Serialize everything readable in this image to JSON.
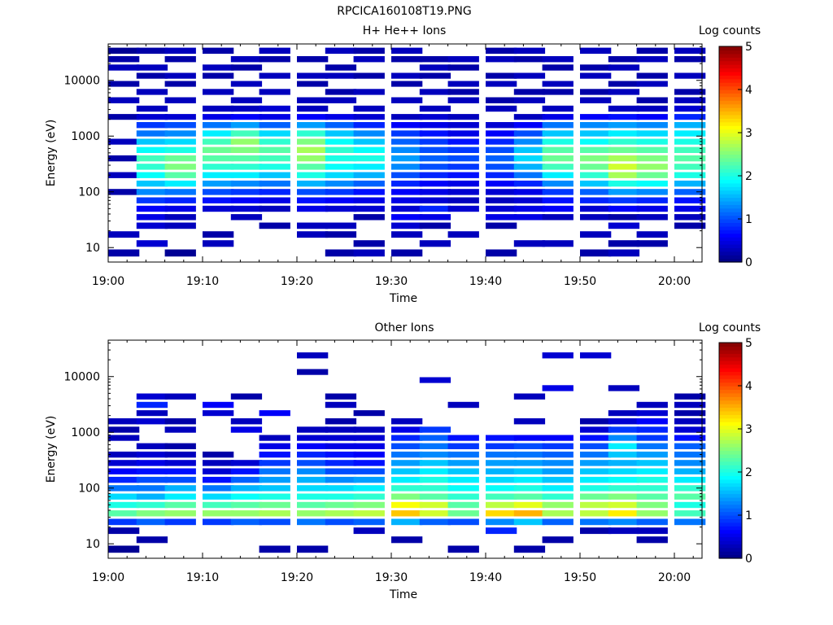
{
  "figure": {
    "title": "RPCICA160108T19.PNG"
  },
  "panels": [
    {
      "title": "H+ He++ Ions",
      "colorbar_label": "Log counts"
    },
    {
      "title": "Other Ions",
      "colorbar_label": "Log counts"
    }
  ],
  "chart_data": [
    {
      "type": "heatmap",
      "title": "H+ He++ Ions",
      "xlabel": "Time",
      "ylabel": "Energy (eV)",
      "x_ticks": [
        "19:00",
        "19:10",
        "19:20",
        "19:30",
        "19:40",
        "19:50",
        "20:00"
      ],
      "xlim": [
        "19:00",
        "20:03"
      ],
      "y_scale": "log",
      "y_ticks": [
        "10",
        "100",
        "1000",
        "10000"
      ],
      "ylim": [
        5.5,
        45000
      ],
      "colorbar": {
        "label": "Log counts",
        "range": [
          0,
          5
        ],
        "ticks": [
          "0",
          "1",
          "2",
          "3",
          "4",
          "5"
        ]
      },
      "x_bins": [
        "19:00",
        "19:03",
        "19:06",
        "19:10",
        "19:13",
        "19:16",
        "19:20",
        "19:23",
        "19:26",
        "19:30",
        "19:33",
        "19:36",
        "19:40",
        "19:43",
        "19:46",
        "19:50",
        "19:53",
        "19:56",
        "20:00"
      ],
      "energy_bins_eV": [
        8,
        12,
        17,
        25,
        35,
        50,
        70,
        100,
        140,
        200,
        280,
        400,
        560,
        800,
        1100,
        1600,
        2200,
        3100,
        4400,
        6200,
        8700,
        12000,
        17000,
        24000,
        34000
      ],
      "values_log_counts": [
        [
          0.2,
          null,
          0.3,
          null,
          null,
          null,
          null,
          0.2,
          null,
          0.3,
          null,
          0.2,
          null,
          0.3,
          null,
          null,
          0.2,
          null,
          0.3,
          null,
          0.2,
          null,
          0.3,
          0.2,
          0.1
        ],
        [
          null,
          0.4,
          null,
          0.4,
          0.5,
          0.6,
          0.9,
          1.3,
          1.6,
          1.9,
          2.1,
          2.2,
          1.9,
          1.6,
          1.2,
          0.9,
          0.4,
          0.3,
          null,
          0.3,
          null,
          0.2,
          0.3,
          null,
          0.2
        ],
        [
          0.1,
          null,
          null,
          0.3,
          0.3,
          0.5,
          0.8,
          1.2,
          1.8,
          2.3,
          2.5,
          2.4,
          2.0,
          1.7,
          1.3,
          1.0,
          0.4,
          null,
          0.3,
          null,
          0.2,
          0.3,
          null,
          0.2,
          0.3
        ],
        [
          null,
          0.3,
          0.2,
          null,
          null,
          0.4,
          0.7,
          1.0,
          1.4,
          1.8,
          2.1,
          2.3,
          2.4,
          2.2,
          1.8,
          1.2,
          0.5,
          0.3,
          null,
          0.3,
          null,
          0.2,
          0.3,
          null,
          0.2
        ],
        [
          null,
          null,
          null,
          null,
          0.3,
          0.4,
          0.6,
          0.9,
          1.3,
          1.8,
          2.1,
          2.3,
          2.5,
          2.6,
          2.2,
          1.4,
          0.6,
          0.3,
          0.3,
          null,
          0.3,
          null,
          0.2,
          0.3,
          null
        ],
        [
          null,
          null,
          null,
          0.2,
          null,
          0.3,
          0.5,
          0.8,
          1.2,
          1.6,
          2.0,
          2.2,
          2.3,
          2.1,
          1.7,
          1.1,
          0.5,
          0.4,
          null,
          0.3,
          null,
          0.3,
          null,
          0.2,
          0.3
        ],
        [
          null,
          null,
          0.3,
          0.3,
          null,
          0.5,
          0.7,
          1.0,
          1.5,
          2.0,
          2.3,
          2.6,
          2.7,
          2.5,
          2.1,
          1.4,
          0.6,
          0.3,
          0.3,
          null,
          0.2,
          0.3,
          null,
          0.2,
          null
        ],
        [
          0.2,
          null,
          0.2,
          0.3,
          null,
          0.4,
          0.6,
          0.9,
          1.3,
          1.7,
          1.9,
          2.0,
          2.1,
          1.9,
          1.6,
          1.1,
          0.5,
          null,
          0.3,
          0.2,
          null,
          0.3,
          0.2,
          null,
          0.3
        ],
        [
          0.3,
          0.2,
          null,
          null,
          0.2,
          0.4,
          0.5,
          0.7,
          1.1,
          1.5,
          1.8,
          2.0,
          1.9,
          1.6,
          1.3,
          0.8,
          0.4,
          0.3,
          null,
          0.3,
          null,
          0.2,
          null,
          0.3,
          0.2
        ],
        [
          0.2,
          null,
          0.3,
          0.4,
          0.6,
          0.4,
          0.5,
          0.6,
          0.8,
          1.0,
          1.3,
          1.4,
          1.3,
          1.1,
          0.9,
          0.6,
          0.3,
          null,
          0.3,
          null,
          0.2,
          0.3,
          null,
          0.2,
          0.3
        ],
        [
          null,
          0.3,
          null,
          0.2,
          0.5,
          0.8,
          0.4,
          0.5,
          0.6,
          0.8,
          1.0,
          1.1,
          1.0,
          0.9,
          0.7,
          0.5,
          0.4,
          0.3,
          null,
          0.3,
          null,
          0.2,
          0.3,
          0.2,
          null
        ],
        [
          null,
          null,
          0.3,
          null,
          null,
          0.4,
          0.3,
          0.4,
          0.5,
          0.7,
          0.9,
          1.0,
          0.9,
          0.7,
          0.5,
          0.4,
          0.3,
          null,
          0.3,
          0.2,
          0.3,
          null,
          0.2,
          0.3,
          null
        ],
        [
          0.2,
          null,
          null,
          0.2,
          0.5,
          0.4,
          0.3,
          0.4,
          0.6,
          0.8,
          1.0,
          1.1,
          1.0,
          0.8,
          0.6,
          0.4,
          null,
          0.3,
          0.2,
          null,
          0.3,
          0.2,
          null,
          0.3,
          0.2
        ],
        [
          null,
          0.3,
          null,
          null,
          0.5,
          0.5,
          0.4,
          0.5,
          0.8,
          1.2,
          1.5,
          1.7,
          1.6,
          1.3,
          1.0,
          0.6,
          0.3,
          null,
          0.3,
          0.2,
          null,
          0.3,
          null,
          0.2,
          0.3
        ],
        [
          null,
          0.3,
          null,
          null,
          0.3,
          0.6,
          0.7,
          0.9,
          1.3,
          1.8,
          2.2,
          2.4,
          2.3,
          2.0,
          1.6,
          1.2,
          0.5,
          0.3,
          null,
          0.2,
          0.3,
          null,
          0.2,
          0.3,
          null
        ],
        [
          0.2,
          null,
          0.3,
          null,
          0.3,
          0.4,
          0.8,
          1.1,
          1.6,
          2.1,
          2.4,
          2.5,
          2.3,
          1.9,
          1.6,
          1.3,
          0.6,
          null,
          0.3,
          0.2,
          null,
          0.3,
          0.2,
          null,
          0.3
        ],
        [
          0.3,
          0.2,
          null,
          0.4,
          0.2,
          0.6,
          0.9,
          1.4,
          2.0,
          2.7,
          2.9,
          2.7,
          2.4,
          2.1,
          1.8,
          1.4,
          0.7,
          0.3,
          null,
          0.3,
          0.2,
          null,
          0.3,
          0.2,
          null
        ],
        [
          null,
          0.2,
          0.3,
          null,
          0.3,
          0.5,
          0.8,
          1.3,
          1.9,
          2.4,
          2.6,
          2.5,
          2.3,
          2.0,
          1.7,
          1.3,
          0.6,
          0.3,
          0.2,
          null,
          0.3,
          0.2,
          null,
          0.3,
          0.2
        ],
        [
          null,
          null,
          null,
          0.2,
          0.3,
          0.5,
          0.7,
          1.1,
          1.5,
          2.0,
          2.2,
          2.3,
          2.2,
          2.0,
          1.8,
          1.5,
          0.8,
          0.4,
          0.3,
          0.2,
          null,
          0.3,
          null,
          0.2,
          0.3
        ]
      ]
    },
    {
      "type": "heatmap",
      "title": "Other Ions",
      "xlabel": "Time",
      "ylabel": "Energy (eV)",
      "x_ticks": [
        "19:00",
        "19:10",
        "19:20",
        "19:30",
        "19:40",
        "19:50",
        "20:00"
      ],
      "xlim": [
        "19:00",
        "20:03"
      ],
      "y_scale": "log",
      "y_ticks": [
        "10",
        "100",
        "1000",
        "10000"
      ],
      "ylim": [
        5.5,
        45000
      ],
      "colorbar": {
        "label": "Log counts",
        "range": [
          0,
          5
        ],
        "ticks": [
          "0",
          "1",
          "2",
          "3",
          "4",
          "5"
        ]
      },
      "x_bins": [
        "19:00",
        "19:03",
        "19:06",
        "19:10",
        "19:13",
        "19:16",
        "19:20",
        "19:23",
        "19:26",
        "19:30",
        "19:33",
        "19:36",
        "19:40",
        "19:43",
        "19:46",
        "19:50",
        "19:53",
        "19:56",
        "20:00"
      ],
      "energy_bins_eV": [
        8,
        12,
        17,
        25,
        35,
        50,
        70,
        100,
        140,
        200,
        280,
        400,
        560,
        800,
        1100,
        1600,
        2200,
        3100,
        4400,
        6200,
        8700,
        12000,
        17000,
        24000,
        34000
      ],
      "values_log_counts": [
        [
          0.1,
          null,
          0.2,
          0.9,
          2.3,
          2.0,
          1.7,
          1.2,
          0.8,
          0.6,
          0.4,
          0.3,
          null,
          0.3,
          0.2,
          0.3,
          null,
          null,
          null,
          null,
          null,
          null,
          null,
          null,
          null
        ],
        [
          null,
          0.2,
          null,
          1.1,
          2.5,
          2.1,
          1.5,
          1.2,
          1.0,
          0.7,
          0.5,
          0.4,
          0.3,
          null,
          null,
          0.4,
          0.3,
          0.8,
          0.4,
          null,
          null,
          null,
          null,
          null,
          null
        ],
        [
          null,
          null,
          null,
          0.9,
          2.6,
          2.3,
          1.8,
          1.5,
          1.0,
          0.7,
          0.4,
          0.3,
          0.2,
          null,
          0.3,
          0.2,
          null,
          null,
          0.3,
          null,
          null,
          null,
          null,
          null,
          null
        ],
        [
          null,
          null,
          null,
          0.9,
          2.6,
          2.2,
          1.7,
          1.2,
          0.7,
          0.4,
          0.3,
          0.2,
          null,
          null,
          null,
          null,
          0.4,
          0.6,
          null,
          null,
          null,
          null,
          null,
          null,
          null
        ],
        [
          null,
          null,
          null,
          1.1,
          2.6,
          2.3,
          1.9,
          1.5,
          1.1,
          0.7,
          0.4,
          null,
          null,
          null,
          0.5,
          0.3,
          null,
          null,
          0.2,
          null,
          null,
          null,
          null,
          null,
          null
        ],
        [
          0.2,
          null,
          null,
          1.0,
          2.7,
          2.4,
          2.0,
          1.6,
          1.4,
          1.2,
          0.9,
          0.7,
          0.5,
          0.3,
          null,
          null,
          0.6,
          null,
          null,
          null,
          null,
          null,
          null,
          null,
          null
        ],
        [
          0.2,
          null,
          null,
          1.2,
          2.6,
          2.3,
          2.0,
          1.7,
          1.5,
          1.3,
          1.0,
          0.8,
          0.6,
          0.4,
          0.3,
          null,
          null,
          null,
          null,
          null,
          null,
          0.2,
          null,
          0.3,
          null
        ],
        [
          null,
          null,
          null,
          1.0,
          2.7,
          2.4,
          2.0,
          1.7,
          1.3,
          1.0,
          0.8,
          0.7,
          0.5,
          0.4,
          0.3,
          0.2,
          null,
          0.3,
          0.2,
          null,
          null,
          null,
          null,
          null,
          null
        ],
        [
          null,
          null,
          0.3,
          1.1,
          2.8,
          2.5,
          2.1,
          1.8,
          1.4,
          1.0,
          0.7,
          0.6,
          0.5,
          0.4,
          0.3,
          null,
          0.2,
          null,
          null,
          null,
          null,
          null,
          null,
          null,
          null
        ],
        [
          null,
          0.2,
          null,
          1.5,
          3.4,
          3.1,
          2.5,
          2.1,
          1.8,
          1.6,
          1.4,
          1.2,
          1.0,
          0.8,
          0.5,
          0.3,
          null,
          null,
          null,
          null,
          null,
          null,
          null,
          null,
          null
        ],
        [
          null,
          null,
          null,
          1.1,
          2.9,
          2.9,
          2.3,
          2.1,
          2.0,
          1.8,
          1.6,
          1.3,
          1.2,
          1.1,
          0.9,
          null,
          null,
          null,
          null,
          null,
          0.4,
          null,
          null,
          null,
          null
        ],
        [
          0.2,
          null,
          null,
          1.0,
          2.4,
          2.3,
          2.1,
          1.9,
          1.8,
          1.6,
          1.4,
          1.2,
          0.9,
          0.7,
          null,
          null,
          null,
          0.3,
          null,
          null,
          null,
          null,
          null,
          null,
          null
        ],
        [
          null,
          null,
          0.8,
          1.3,
          3.3,
          2.8,
          2.2,
          1.9,
          1.7,
          1.5,
          1.4,
          1.2,
          0.9,
          0.7,
          null,
          null,
          null,
          null,
          null,
          null,
          null,
          null,
          null,
          null,
          null
        ],
        [
          0.2,
          null,
          null,
          1.6,
          3.5,
          3.0,
          2.3,
          2.0,
          1.8,
          1.6,
          1.4,
          1.2,
          1.0,
          0.6,
          null,
          0.3,
          null,
          null,
          0.3,
          null,
          null,
          null,
          null,
          null,
          null
        ],
        [
          null,
          0.2,
          null,
          1.1,
          2.7,
          2.6,
          2.1,
          1.8,
          1.6,
          1.4,
          1.3,
          1.1,
          0.9,
          0.6,
          null,
          null,
          null,
          null,
          null,
          0.5,
          null,
          null,
          null,
          0.4,
          null
        ],
        [
          null,
          null,
          0.2,
          1.2,
          2.8,
          2.8,
          2.4,
          2.0,
          1.8,
          1.6,
          1.4,
          1.2,
          1.0,
          0.7,
          0.4,
          0.2,
          null,
          null,
          null,
          null,
          null,
          null,
          null,
          0.4,
          null
        ],
        [
          null,
          null,
          0.3,
          1.3,
          3.2,
          2.9,
          2.5,
          2.1,
          1.9,
          1.7,
          1.5,
          1.6,
          1.8,
          1.3,
          0.9,
          0.4,
          0.3,
          null,
          null,
          0.3,
          null,
          null,
          null,
          null,
          null
        ],
        [
          null,
          0.2,
          0.3,
          1.1,
          2.6,
          2.5,
          2.3,
          2.1,
          2.0,
          1.8,
          1.6,
          1.4,
          1.2,
          0.9,
          0.8,
          0.6,
          0.4,
          0.3,
          null,
          null,
          null,
          null,
          null,
          null,
          null
        ],
        [
          null,
          null,
          null,
          1.2,
          2.2,
          2.0,
          2.3,
          2.1,
          1.8,
          1.5,
          1.3,
          1.2,
          1.1,
          0.7,
          0.4,
          0.3,
          0.2,
          0.3,
          0.2,
          null,
          null,
          null,
          null,
          null,
          null
        ]
      ]
    }
  ]
}
